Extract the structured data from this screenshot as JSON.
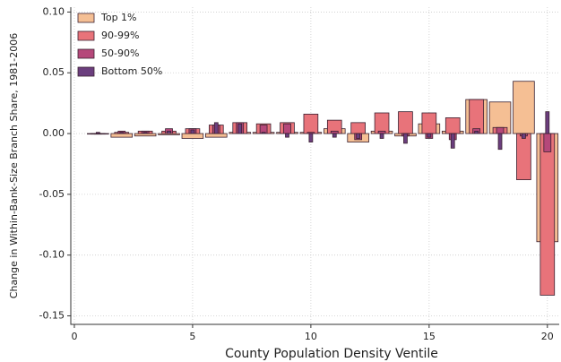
{
  "chart_data": {
    "type": "bar",
    "xlabel": "County Population Density Ventile",
    "ylabel": "Change in Within-Bank-Size Branch Share, 1981-2006",
    "x": [
      1,
      2,
      3,
      4,
      5,
      6,
      7,
      8,
      9,
      10,
      11,
      12,
      13,
      14,
      15,
      16,
      17,
      18,
      19,
      20
    ],
    "series": [
      {
        "name": "Top 1%",
        "color": "#f5bf94",
        "values": [
          0,
          -0.003,
          -0.002,
          -0.001,
          -0.004,
          -0.003,
          0.001,
          0.001,
          0.001,
          0.001,
          0.004,
          -0.007,
          0.002,
          -0.002,
          0.008,
          0.002,
          0.028,
          0.026,
          0.043,
          -0.089
        ]
      },
      {
        "name": "90-99%",
        "color": "#e8737a",
        "values": [
          0,
          0.001,
          0.002,
          0.002,
          0.004,
          0.007,
          0.009,
          0.008,
          0.009,
          0.016,
          0.011,
          0.009,
          0.017,
          0.018,
          0.017,
          0.013,
          0.028,
          0.005,
          -0.038,
          -0.133
        ]
      },
      {
        "name": "50-90%",
        "color": "#b5487a",
        "values": [
          0,
          0.002,
          0.002,
          0.004,
          0.004,
          0.007,
          0.009,
          0.007,
          0.008,
          0.001,
          0.002,
          -0.005,
          0.002,
          -0.002,
          -0.004,
          -0.005,
          0.004,
          0.005,
          -0.002,
          -0.015
        ]
      },
      {
        "name": "Bottom 50%",
        "color": "#6b3e7e",
        "values": [
          0.001,
          0.001,
          0.001,
          0.002,
          0.003,
          0.009,
          0.008,
          0.001,
          -0.003,
          -0.007,
          -0.003,
          -0.004,
          -0.004,
          -0.008,
          -0.003,
          -0.012,
          0.002,
          -0.013,
          -0.004,
          0.018
        ]
      }
    ],
    "xlim": [
      -0.15,
      20.5
    ],
    "xticks": [
      0,
      5,
      10,
      15,
      20
    ],
    "ylim": [
      -0.157,
      0.104
    ],
    "yticks": [
      {
        "value": -0.15,
        "label": "-0.15"
      },
      {
        "value": -0.1,
        "label": "-0.10"
      },
      {
        "value": -0.05,
        "label": "-0.05"
      },
      {
        "value": 0,
        "label": "0.00"
      },
      {
        "value": 0.05,
        "label": "0.05"
      },
      {
        "value": 0.1,
        "label": "0.10"
      }
    ],
    "grid": true,
    "legend": "upper left"
  }
}
